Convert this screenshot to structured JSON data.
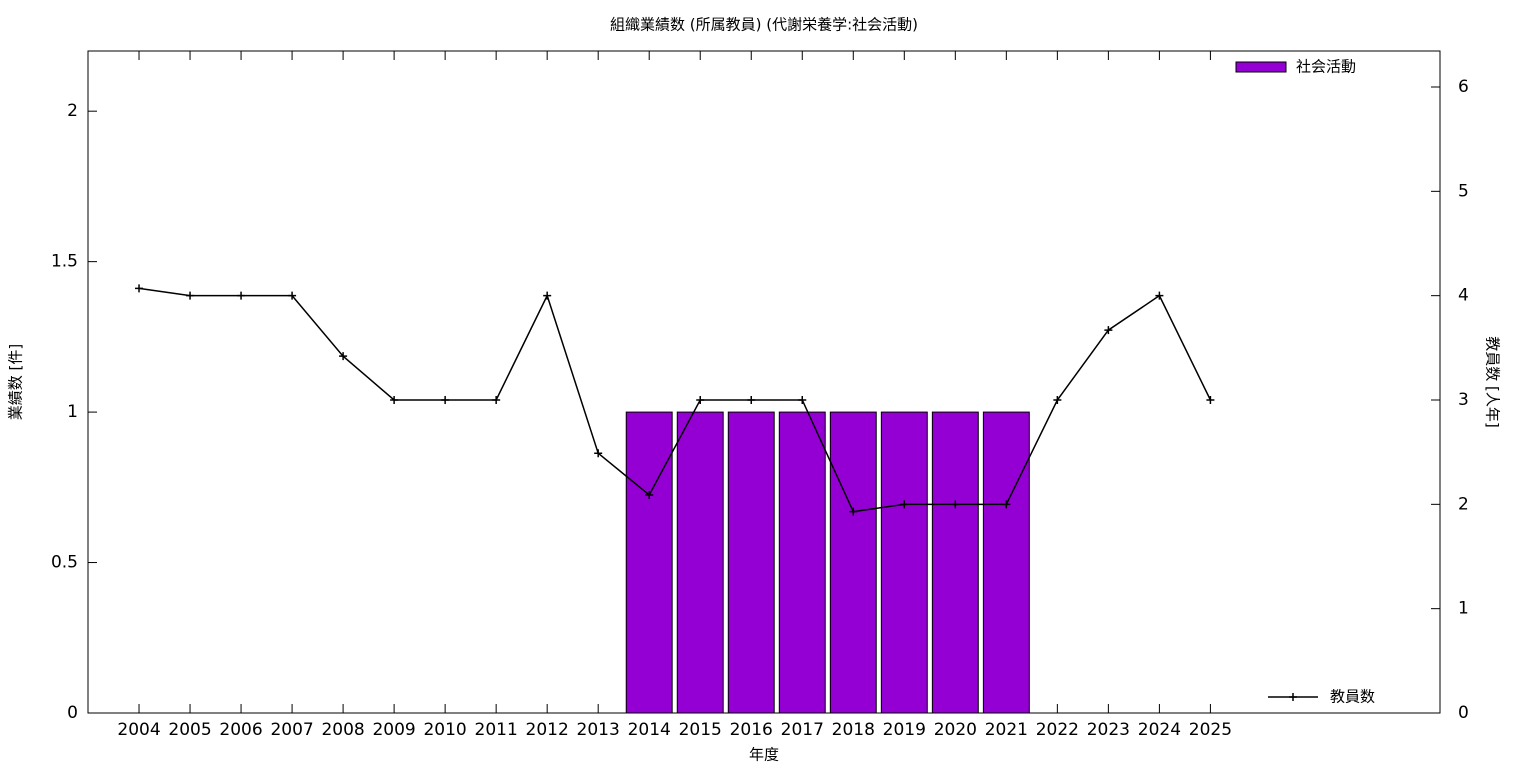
{
  "chart_data": {
    "type": "bar_line",
    "title": "組織業績数 (所属教員) (代謝栄養学:社会活動)",
    "xlabel": "年度",
    "ylabel": "業績数 [件]",
    "y2label": "教員数 [人年]",
    "x": [
      2004,
      2005,
      2006,
      2007,
      2008,
      2009,
      2010,
      2011,
      2012,
      2013,
      2014,
      2015,
      2016,
      2017,
      2018,
      2019,
      2020,
      2021,
      2022,
      2023,
      2024,
      2025
    ],
    "xlim": [
      2003,
      2029.5
    ],
    "xticks": [
      2004,
      2005,
      2006,
      2007,
      2008,
      2009,
      2010,
      2011,
      2012,
      2013,
      2014,
      2015,
      2016,
      2017,
      2018,
      2019,
      2020,
      2021,
      2022,
      2023,
      2024,
      2025
    ],
    "ylim": [
      0,
      2.2
    ],
    "yticks": [
      0,
      0.5,
      1,
      1.5,
      2
    ],
    "y2lim": [
      0,
      6.345
    ],
    "y2ticks": [
      0,
      1,
      2,
      3,
      4,
      5,
      6
    ],
    "series": [
      {
        "name": "社会活動",
        "type": "bar",
        "color": "#9400d3",
        "legend": "top right",
        "values": [
          0,
          0,
          0,
          0,
          0,
          0,
          0,
          0,
          0,
          0,
          1,
          1,
          1,
          1,
          1,
          1,
          1,
          1,
          0,
          0,
          0,
          0
        ]
      },
      {
        "name": "教員数",
        "type": "line",
        "axis": "y2",
        "color": "#000000",
        "legend": "bottom right",
        "values": [
          4.07,
          4,
          4,
          4,
          3.42,
          3,
          3,
          3,
          4,
          2.49,
          2.09,
          3,
          3,
          3,
          1.93,
          2,
          2,
          2,
          3,
          3.67,
          4,
          3
        ]
      }
    ]
  }
}
